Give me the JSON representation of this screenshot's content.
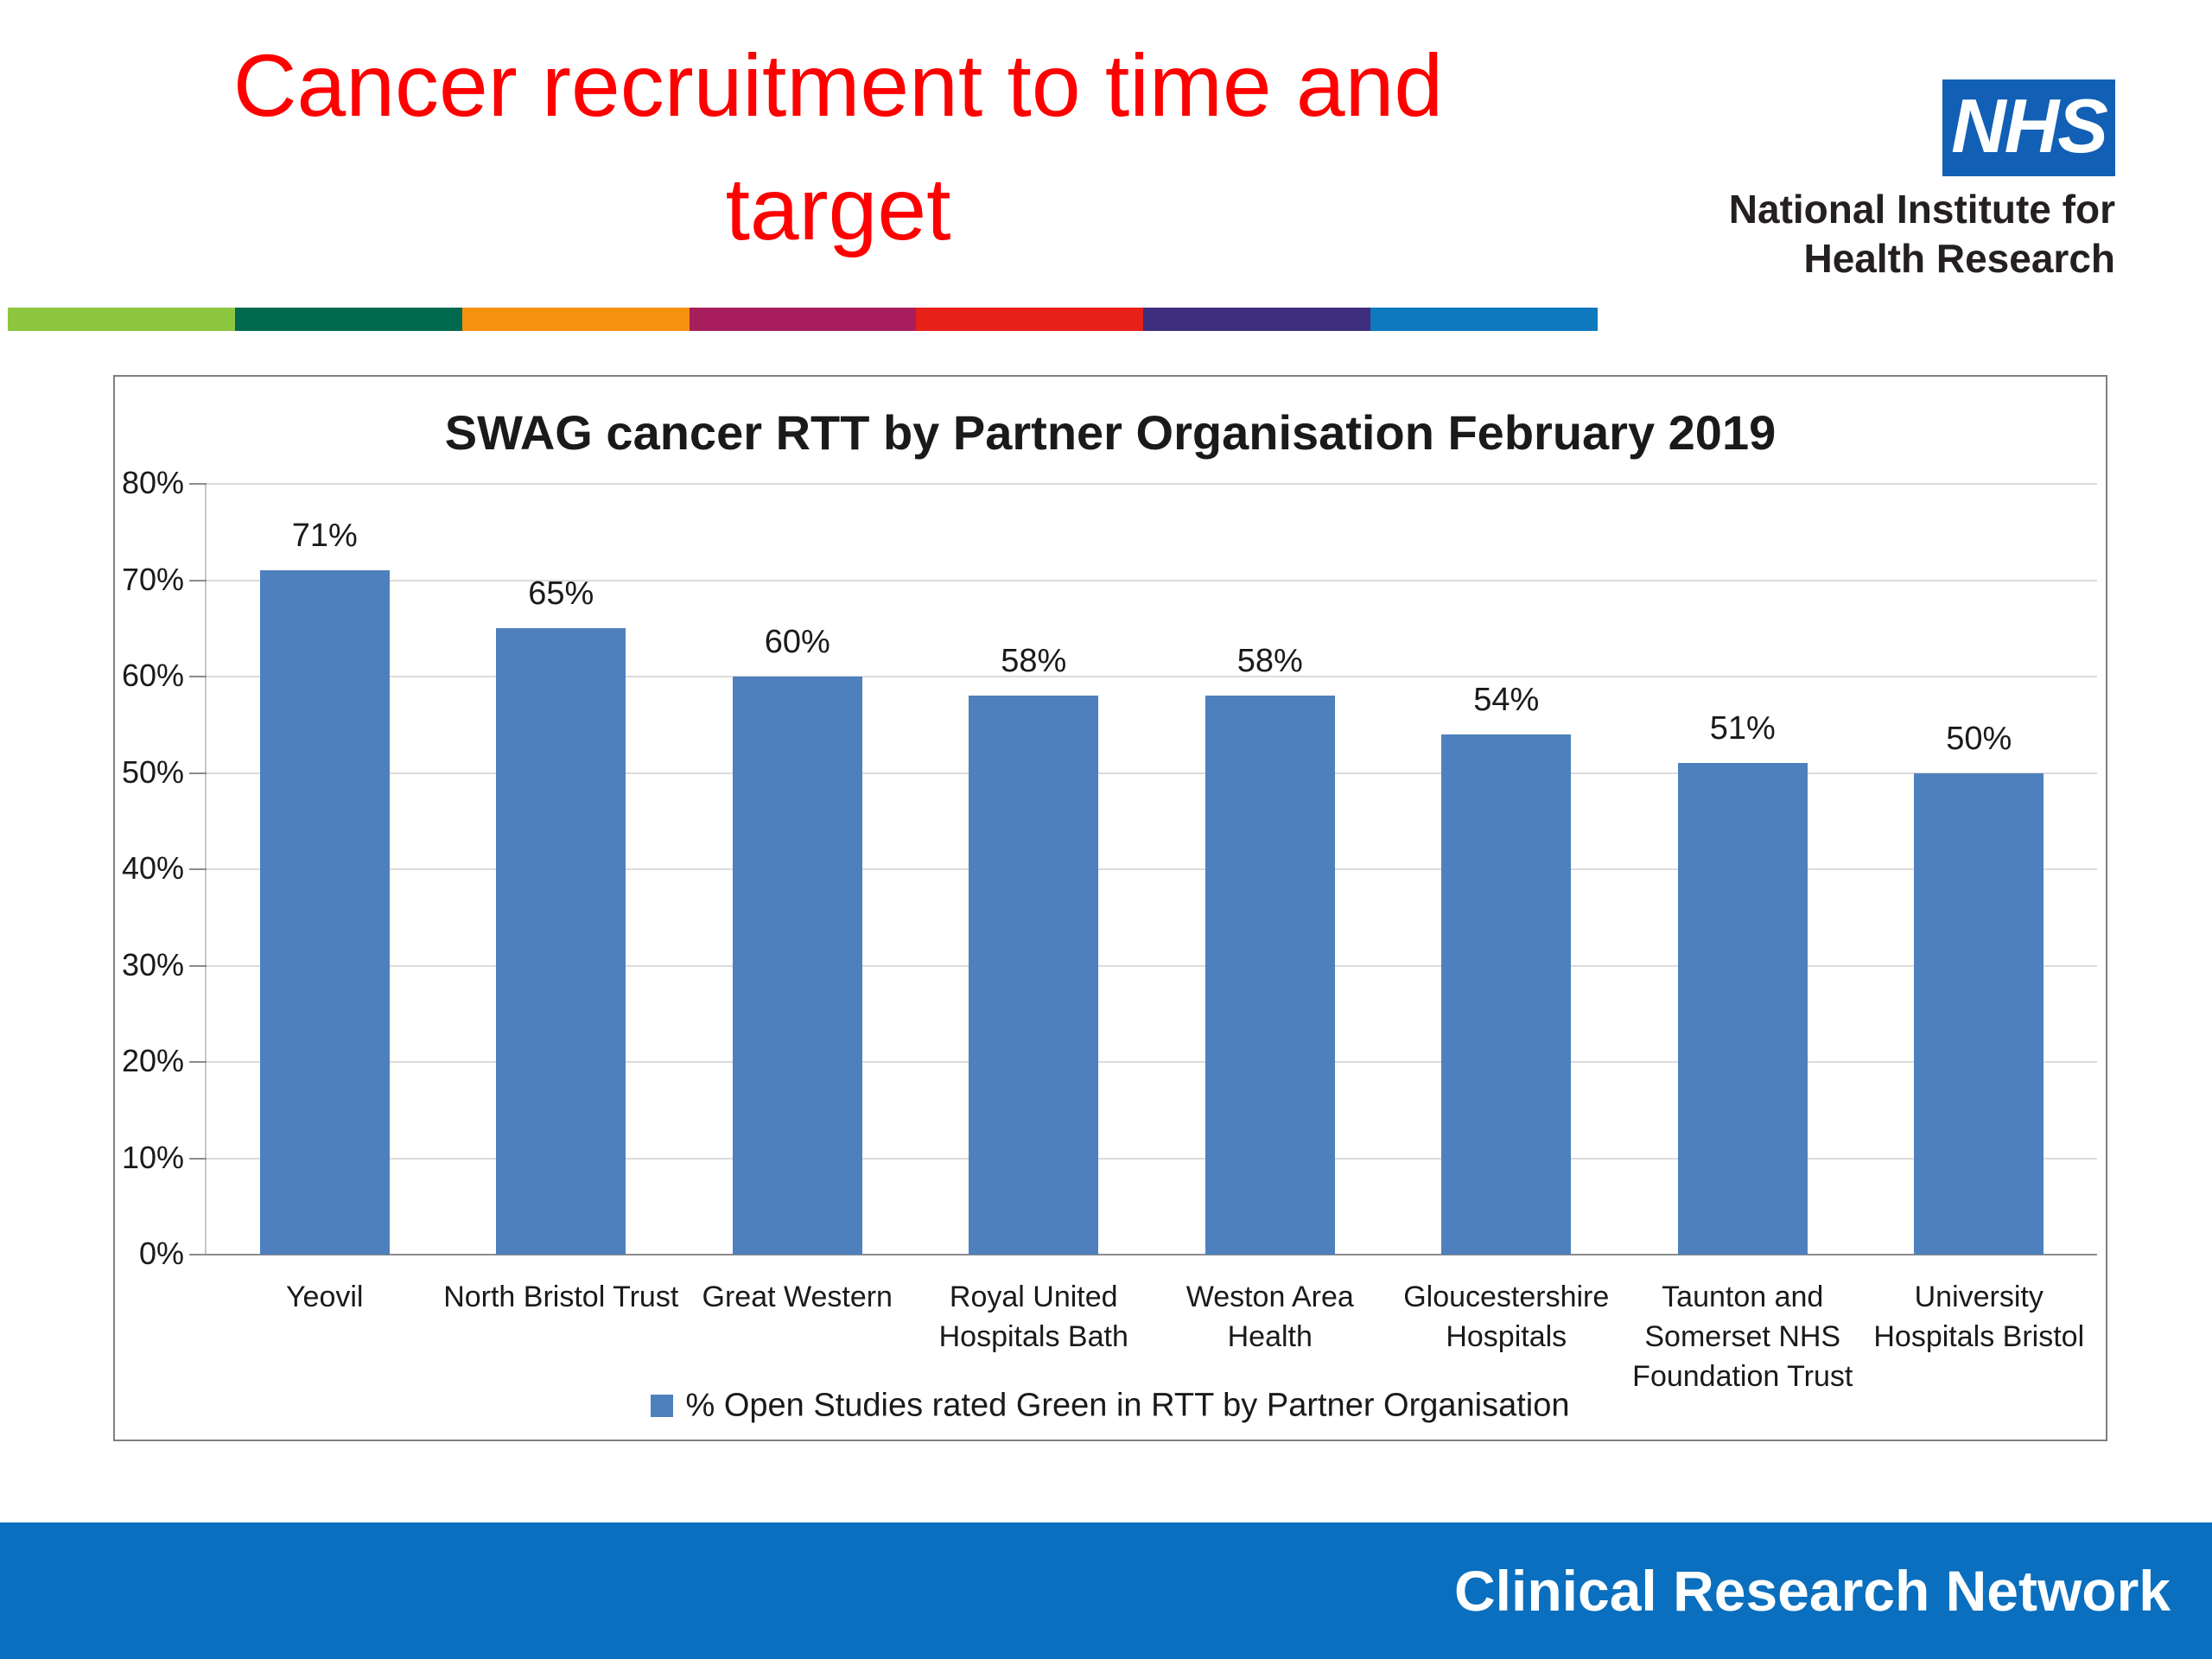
{
  "slide": {
    "title": "Cancer recruitment to time and target",
    "title_lines": [
      "Cancer recruitment to time and",
      "target"
    ],
    "title_color": "#fe0000",
    "footer": "Clinical Research Network",
    "footer_bg": "#0a6fbe"
  },
  "nhs": {
    "logo_text": "NHS",
    "org_line1": "National Institute for",
    "org_line2": "Health Research",
    "logo_bg": "#1160b5"
  },
  "stripe_colors": [
    "#8dc63f",
    "#00694e",
    "#f6910e",
    "#a81e5c",
    "#e8201a",
    "#3f2d7d",
    "#0f79be"
  ],
  "chart_data": {
    "type": "bar",
    "title": "SWAG cancer RTT by Partner Organisation February 2019",
    "categories": [
      "Yeovil",
      "North Bristol Trust",
      "Great Western",
      "Royal United Hospitals Bath",
      "Weston Area Health",
      "Gloucestershire Hospitals",
      "Taunton and Somerset NHS Foundation Trust",
      "University Hospitals Bristol"
    ],
    "values": [
      71,
      65,
      60,
      58,
      58,
      54,
      51,
      50
    ],
    "labels": [
      "71%",
      "65%",
      "60%",
      "58%",
      "58%",
      "54%",
      "51%",
      "50%"
    ],
    "ylim": [
      0,
      80
    ],
    "ytick_step": 10,
    "ytick_labels": [
      "0%",
      "10%",
      "20%",
      "30%",
      "40%",
      "50%",
      "60%",
      "70%",
      "80%"
    ],
    "grid": true,
    "legend": "% Open Studies rated Green in RTT by Partner Organisation",
    "legend_position": "bottom",
    "bar_color": "#4e80bd",
    "xlabel": "",
    "ylabel": ""
  }
}
